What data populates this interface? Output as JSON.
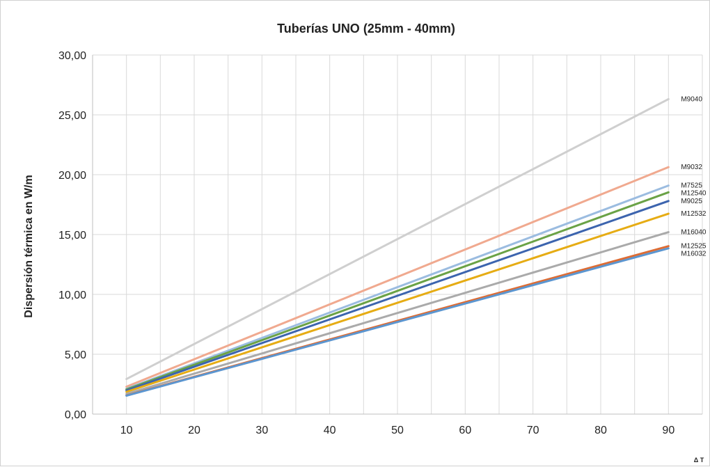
{
  "chart_data": {
    "type": "line",
    "title": "Tuberías UNO (25mm - 40mm)",
    "xlabel": "Δ T",
    "ylabel": "Dispersión térmica en W/m",
    "xlim": [
      5,
      95
    ],
    "ylim": [
      0,
      30
    ],
    "x_ticks": [
      "10",
      "20",
      "30",
      "40",
      "50",
      "60",
      "70",
      "80",
      "90"
    ],
    "y_ticks": [
      "0,00",
      "5,00",
      "10,00",
      "15,00",
      "20,00",
      "25,00",
      "30,00"
    ],
    "grid": true,
    "legend": "none",
    "series_labels": "right-end",
    "x": [
      10,
      90
    ],
    "series": [
      {
        "name": "M9040",
        "values": [
          2.93,
          26.31
        ],
        "color": "#cfcfcf"
      },
      {
        "name": "M9032",
        "values": [
          2.29,
          20.63
        ],
        "color": "#f0a98f"
      },
      {
        "name": "M7525",
        "values": [
          2.12,
          19.09
        ],
        "color": "#9bbce0"
      },
      {
        "name": "M12540",
        "values": [
          2.06,
          18.53
        ],
        "color": "#6aa246"
      },
      {
        "name": "M9025",
        "values": [
          1.98,
          17.8
        ],
        "color": "#3c64ae"
      },
      {
        "name": "M12532",
        "values": [
          1.86,
          16.74
        ],
        "color": "#e6ac14"
      },
      {
        "name": "M16040",
        "values": [
          1.69,
          15.2
        ],
        "color": "#aaaaaa"
      },
      {
        "name": "M12525",
        "values": [
          1.56,
          14.03
        ],
        "color": "#dd6c34"
      },
      {
        "name": "M16032",
        "values": [
          1.54,
          13.85
        ],
        "color": "#5c96d0"
      }
    ]
  }
}
